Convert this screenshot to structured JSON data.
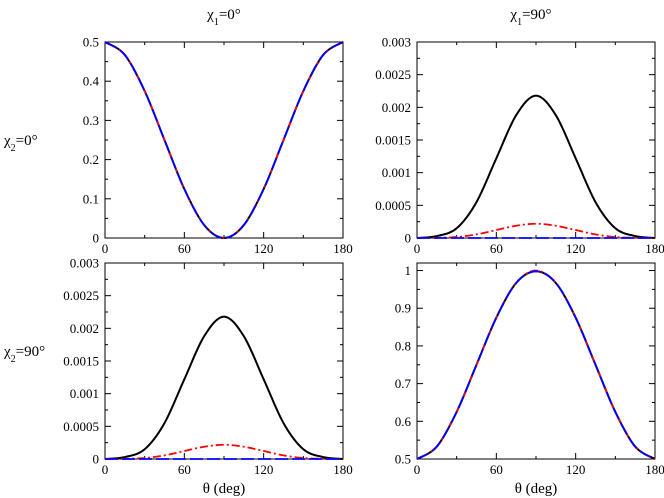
{
  "figure": {
    "col_headers": [
      {
        "prefix": "χ",
        "sub": "1",
        "suffix": "=0°"
      },
      {
        "prefix": "χ",
        "sub": "1",
        "suffix": "=90°"
      }
    ],
    "row_headers": [
      {
        "prefix": "χ",
        "sub": "2",
        "suffix": "=0°"
      },
      {
        "prefix": "χ",
        "sub": "2",
        "suffix": "=90°"
      }
    ],
    "series_styles": [
      {
        "name": "solid",
        "color": "#000000"
      },
      {
        "name": "dash-dot",
        "color": "#ff0000"
      },
      {
        "name": "long-dash",
        "color": "#0000ff"
      }
    ]
  },
  "chart_data": [
    {
      "type": "line",
      "panel": "top-left",
      "xlabel": "",
      "ylabel": "",
      "xlim": [
        0,
        180
      ],
      "ylim": [
        0,
        0.5
      ],
      "xticks": [
        0,
        60,
        120,
        180
      ],
      "xtick_labels": [
        "0",
        "60",
        "120",
        "180"
      ],
      "yticks": [
        0,
        0.1,
        0.2,
        0.3,
        0.4,
        0.5
      ],
      "ytick_labels": [
        "0",
        "0.1",
        "0.2",
        "0.3",
        "0.4",
        "0.5"
      ],
      "x": [
        0,
        15,
        30,
        45,
        60,
        75,
        90,
        105,
        120,
        135,
        150,
        165,
        180
      ],
      "series": [
        {
          "name": "solid",
          "values": [
            0.5,
            0.467,
            0.375,
            0.25,
            0.125,
            0.033,
            0,
            0.033,
            0.125,
            0.25,
            0.375,
            0.467,
            0.5
          ]
        },
        {
          "name": "dash-dot",
          "values": [
            0.5,
            0.467,
            0.375,
            0.25,
            0.125,
            0.033,
            0,
            0.033,
            0.125,
            0.25,
            0.375,
            0.467,
            0.5
          ]
        },
        {
          "name": "long-dash",
          "values": [
            0.5,
            0.467,
            0.375,
            0.25,
            0.125,
            0.033,
            0,
            0.033,
            0.125,
            0.25,
            0.375,
            0.467,
            0.5
          ]
        }
      ]
    },
    {
      "type": "line",
      "panel": "top-right",
      "xlabel": "",
      "ylabel": "",
      "xlim": [
        0,
        180
      ],
      "ylim": [
        0,
        0.003
      ],
      "xticks": [
        0,
        60,
        120,
        180
      ],
      "xtick_labels": [
        "0",
        "60",
        "120",
        "180"
      ],
      "yticks": [
        0,
        0.0005,
        0.001,
        0.0015,
        0.002,
        0.0025,
        0.003
      ],
      "ytick_labels": [
        "0",
        "0.0005",
        "0.001",
        "0.0015",
        "0.002",
        "0.0025",
        "0.003"
      ],
      "x": [
        0,
        15,
        30,
        45,
        60,
        75,
        90,
        105,
        120,
        135,
        150,
        165,
        180
      ],
      "series": [
        {
          "name": "solid",
          "values": [
            0,
            3e-05,
            0.00015,
            0.00055,
            0.00122,
            0.00188,
            0.00218,
            0.00188,
            0.00122,
            0.00055,
            0.00015,
            3e-05,
            0
          ]
        },
        {
          "name": "dash-dot",
          "values": [
            0,
            3e-06,
            1.5e-05,
            5.5e-05,
            0.000122,
            0.000188,
            0.000218,
            0.000188,
            0.000122,
            5.5e-05,
            1.5e-05,
            3e-06,
            0
          ]
        },
        {
          "name": "long-dash",
          "values": [
            0,
            0,
            0,
            0,
            0,
            0,
            0,
            0,
            0,
            0,
            0,
            0,
            0
          ]
        }
      ]
    },
    {
      "type": "line",
      "panel": "bottom-left",
      "xlabel": "θ (deg)",
      "ylabel": "",
      "xlim": [
        0,
        180
      ],
      "ylim": [
        0,
        0.003
      ],
      "xticks": [
        0,
        60,
        120,
        180
      ],
      "xtick_labels": [
        "0",
        "60",
        "120",
        "180"
      ],
      "yticks": [
        0,
        0.0005,
        0.001,
        0.0015,
        0.002,
        0.0025,
        0.003
      ],
      "ytick_labels": [
        "0",
        "0.0005",
        "0.001",
        "0.0015",
        "0.002",
        "0.0025",
        "0.003"
      ],
      "x": [
        0,
        15,
        30,
        45,
        60,
        75,
        90,
        105,
        120,
        135,
        150,
        165,
        180
      ],
      "series": [
        {
          "name": "solid",
          "values": [
            0,
            3e-05,
            0.00015,
            0.00055,
            0.00122,
            0.00188,
            0.00218,
            0.00188,
            0.00122,
            0.00055,
            0.00015,
            3e-05,
            0
          ]
        },
        {
          "name": "dash-dot",
          "values": [
            0,
            3e-06,
            1.5e-05,
            5.5e-05,
            0.000122,
            0.000188,
            0.000218,
            0.000188,
            0.000122,
            5.5e-05,
            1.5e-05,
            3e-06,
            0
          ]
        },
        {
          "name": "long-dash",
          "values": [
            0,
            0,
            0,
            0,
            0,
            0,
            0,
            0,
            0,
            0,
            0,
            0,
            0
          ]
        }
      ]
    },
    {
      "type": "line",
      "panel": "bottom-right",
      "xlabel": "θ (deg)",
      "ylabel": "",
      "xlim": [
        0,
        180
      ],
      "ylim": [
        0.5,
        1.02
      ],
      "xticks": [
        0,
        60,
        120,
        180
      ],
      "xtick_labels": [
        "0",
        "60",
        "120",
        "180"
      ],
      "yticks": [
        0.5,
        0.6,
        0.7,
        0.8,
        0.9,
        1.0
      ],
      "ytick_labels": [
        "0.5",
        "0.6",
        "0.7",
        "0.8",
        "0.9",
        "1"
      ],
      "x": [
        0,
        15,
        30,
        45,
        60,
        75,
        90,
        105,
        120,
        135,
        150,
        165,
        180
      ],
      "series": [
        {
          "name": "solid",
          "values": [
            0.5,
            0.533,
            0.625,
            0.75,
            0.875,
            0.967,
            0.998,
            0.967,
            0.875,
            0.75,
            0.625,
            0.533,
            0.5
          ]
        },
        {
          "name": "dash-dot",
          "values": [
            0.5,
            0.533,
            0.625,
            0.75,
            0.875,
            0.967,
            1.0,
            0.967,
            0.875,
            0.75,
            0.625,
            0.533,
            0.5
          ]
        },
        {
          "name": "long-dash",
          "values": [
            0.5,
            0.533,
            0.625,
            0.75,
            0.875,
            0.967,
            0.998,
            0.967,
            0.875,
            0.75,
            0.625,
            0.533,
            0.5
          ]
        }
      ]
    }
  ]
}
